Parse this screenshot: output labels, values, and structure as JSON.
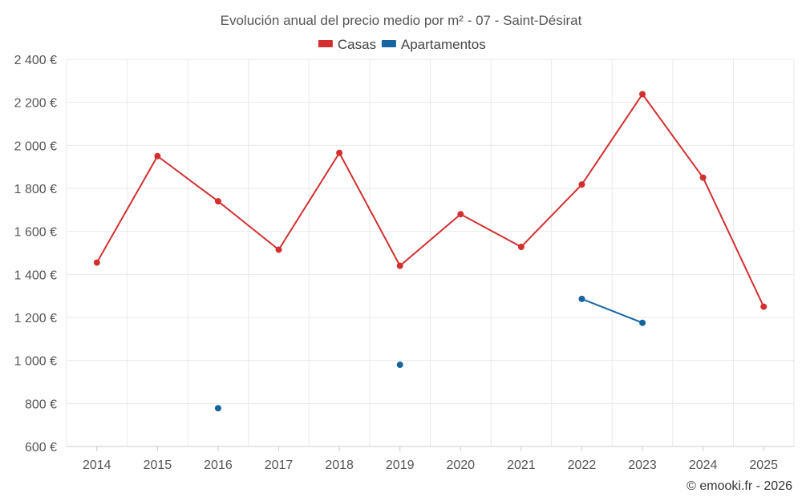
{
  "chart_data": {
    "type": "line",
    "title": "Evolución anual del precio medio por m² - 07 - Saint-Désirat",
    "categories": [
      "2014",
      "2015",
      "2016",
      "2017",
      "2018",
      "2019",
      "2020",
      "2021",
      "2022",
      "2023",
      "2024",
      "2025"
    ],
    "series": [
      {
        "name": "Casas",
        "color": "#d32f2f",
        "values": [
          1455,
          1950,
          1740,
          1515,
          1965,
          1440,
          1680,
          1528,
          1818,
          2238,
          1850,
          1250
        ]
      },
      {
        "name": "Apartamentos",
        "color": "#1565a0",
        "values": [
          null,
          null,
          778,
          null,
          null,
          980,
          null,
          null,
          1286,
          1175,
          null,
          null
        ]
      }
    ],
    "y_ticks": [
      600,
      800,
      1000,
      1200,
      1400,
      1600,
      1800,
      2000,
      2200,
      2400
    ],
    "y_tick_labels": [
      "600 €",
      "800 €",
      "1 000 €",
      "1 200 €",
      "1 400 €",
      "1 600 €",
      "1 800 €",
      "2 000 €",
      "2 200 €",
      "2 400 €"
    ],
    "ylim": [
      600,
      2400
    ],
    "grid": true,
    "legend_position": "top-center",
    "xlabel": "",
    "ylabel": ""
  },
  "credit": "© emooki.fr - 2026"
}
